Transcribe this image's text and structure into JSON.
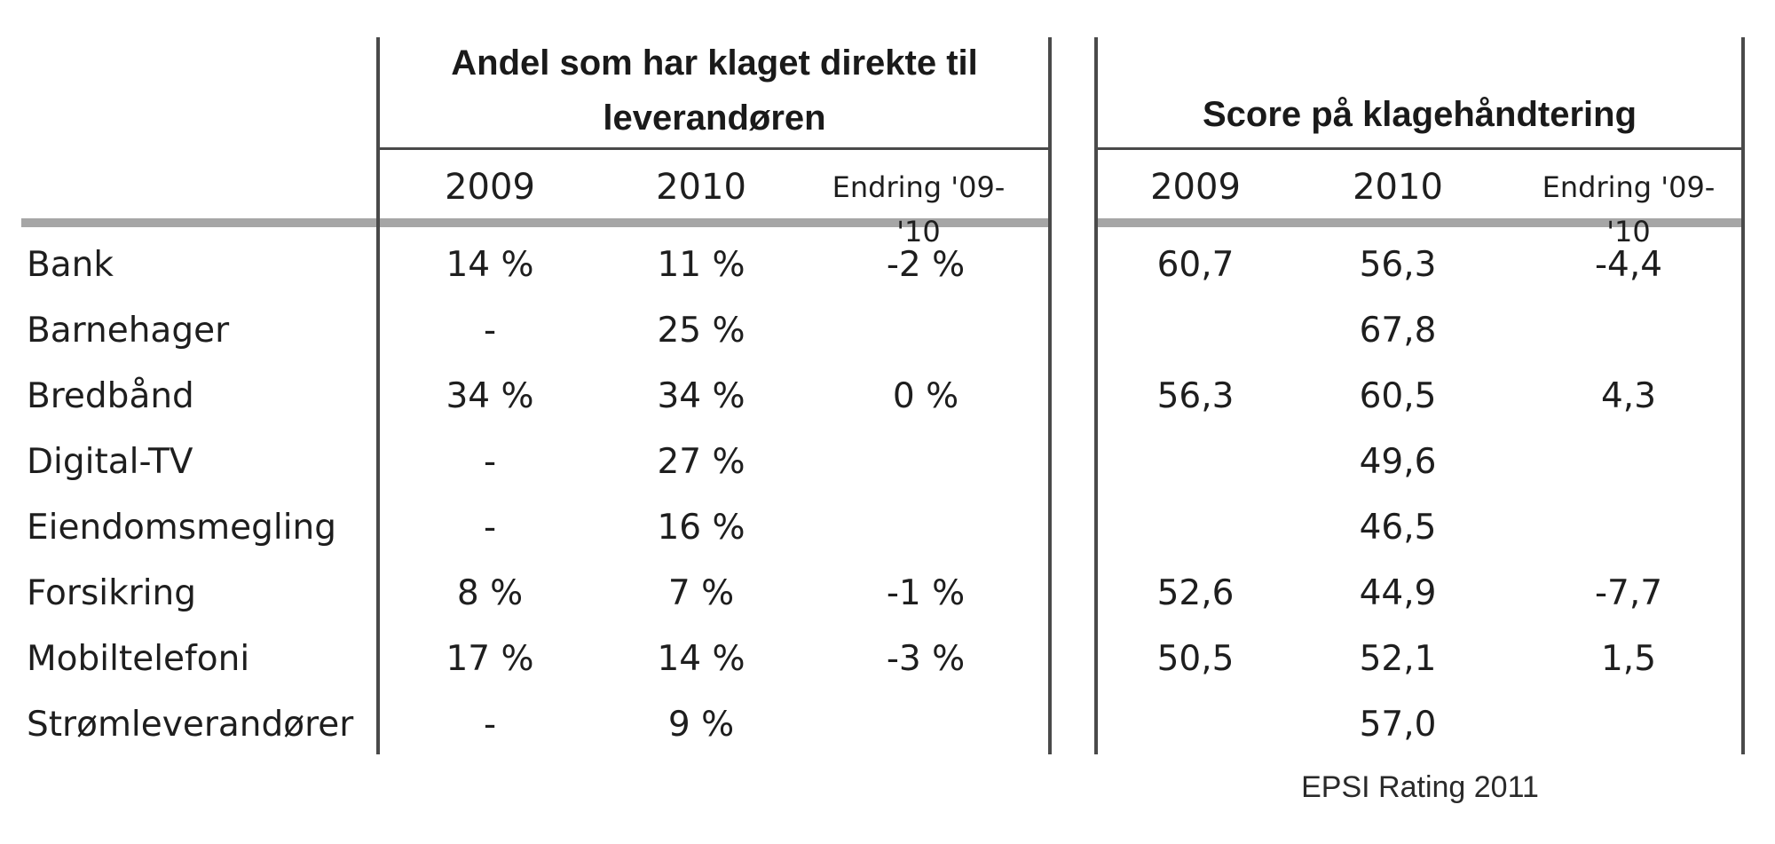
{
  "table": {
    "group_headers": {
      "complaints": "Andel som har klaget direkte til leverandøren",
      "score": "Score på klagehåndtering"
    },
    "sub_headers": {
      "complaints": [
        "2009",
        "2010",
        "Endring '09-'10"
      ],
      "score": [
        "2009",
        "2010",
        "Endring '09-'10"
      ]
    },
    "rows": [
      {
        "label": "Bank",
        "c2009": "14 %",
        "c2010": "11 %",
        "cchg": "-2 %",
        "s2009": "60,7",
        "s2010": "56,3",
        "schg": "-4,4"
      },
      {
        "label": "Barnehager",
        "c2009": "-",
        "c2010": "25 %",
        "cchg": "",
        "s2009": "",
        "s2010": "67,8",
        "schg": ""
      },
      {
        "label": "Bredbånd",
        "c2009": "34 %",
        "c2010": "34 %",
        "cchg": "0 %",
        "s2009": "56,3",
        "s2010": "60,5",
        "schg": "4,3"
      },
      {
        "label": "Digital-TV",
        "c2009": "-",
        "c2010": "27 %",
        "cchg": "",
        "s2009": "",
        "s2010": "49,6",
        "schg": ""
      },
      {
        "label": "Eiendomsmegling",
        "c2009": "-",
        "c2010": "16 %",
        "cchg": "",
        "s2009": "",
        "s2010": "46,5",
        "schg": ""
      },
      {
        "label": "Forsikring",
        "c2009": "8 %",
        "c2010": "7 %",
        "cchg": "-1 %",
        "s2009": "52,6",
        "s2010": "44,9",
        "schg": "-7,7"
      },
      {
        "label": "Mobiltelefoni",
        "c2009": "17 %",
        "c2010": "14 %",
        "cchg": "-3 %",
        "s2009": "50,5",
        "s2010": "52,1",
        "schg": "1,5"
      },
      {
        "label": "Strømleverandører",
        "c2009": "-",
        "c2010": "9 %",
        "cchg": "",
        "s2009": "",
        "s2010": "57,0",
        "schg": ""
      }
    ]
  },
  "source": "EPSI Rating 2011"
}
